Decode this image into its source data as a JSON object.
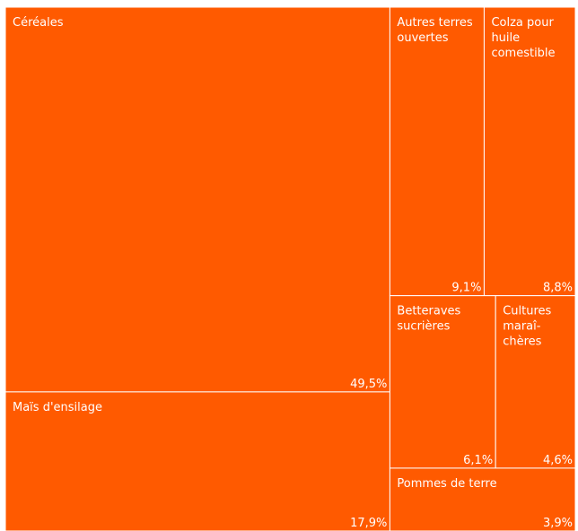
{
  "chart_data": {
    "type": "treemap",
    "color": "#FF5A00",
    "border_color": "#ffffff",
    "items": [
      {
        "label_lines": [
          "Céréales"
        ],
        "value": 49.5,
        "value_label": "49,5%"
      },
      {
        "label_lines": [
          "Maïs d'ensilage"
        ],
        "value": 17.9,
        "value_label": "17,9%"
      },
      {
        "label_lines": [
          "Autres terres",
          "ouvertes"
        ],
        "value": 9.1,
        "value_label": "9,1%"
      },
      {
        "label_lines": [
          "Colza pour",
          "huile",
          "comestible"
        ],
        "value": 8.8,
        "value_label": "8,8%"
      },
      {
        "label_lines": [
          "Betteraves",
          "sucrières"
        ],
        "value": 6.1,
        "value_label": "6,1%"
      },
      {
        "label_lines": [
          "Cultures",
          "maraî-",
          "chères"
        ],
        "value": 4.6,
        "value_label": "4,6%"
      },
      {
        "label_lines": [
          "Pommes de terre"
        ],
        "value": 3.9,
        "value_label": "3,9%"
      }
    ]
  }
}
